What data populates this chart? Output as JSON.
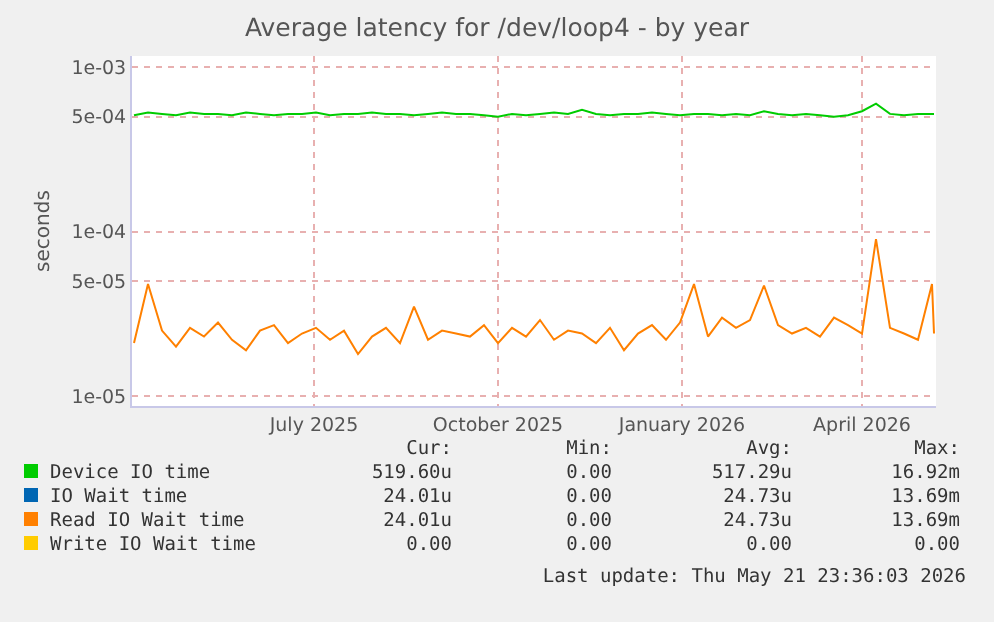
{
  "chart_data": {
    "type": "line",
    "title": "Average latency for /dev/loop4 - by year",
    "ylabel": "seconds",
    "log": "y",
    "grid": true,
    "legend": "bottom",
    "marker": "none",
    "line_style": "solid",
    "ylim": [
      8.7e-06,
      0.00117
    ],
    "yticks": [
      {
        "value": 1e-05,
        "label": "1e-05"
      },
      {
        "value": 5e-05,
        "label": "5e-05"
      },
      {
        "value": 0.0001,
        "label": "1e-04"
      },
      {
        "value": 0.0005,
        "label": "5e-04"
      },
      {
        "value": 0.001,
        "label": "1e-03"
      }
    ],
    "xlim": [
      "2025-04-15",
      "2026-05-22"
    ],
    "xticks": [
      {
        "value": "2025-07-15",
        "label": "July 2025"
      },
      {
        "value": "2025-10-15",
        "label": "October 2025"
      },
      {
        "value": "2026-01-15",
        "label": "January 2026"
      },
      {
        "value": "2026-04-15",
        "label": "April 2026"
      }
    ],
    "x": [
      "2025-04-16",
      "2025-04-23",
      "2025-04-30",
      "2025-05-07",
      "2025-05-14",
      "2025-05-21",
      "2025-05-28",
      "2025-06-04",
      "2025-06-11",
      "2025-06-18",
      "2025-06-25",
      "2025-07-02",
      "2025-07-09",
      "2025-07-16",
      "2025-07-23",
      "2025-07-30",
      "2025-08-06",
      "2025-08-13",
      "2025-08-20",
      "2025-08-27",
      "2025-09-03",
      "2025-09-10",
      "2025-09-17",
      "2025-09-24",
      "2025-10-01",
      "2025-10-08",
      "2025-10-15",
      "2025-10-22",
      "2025-10-29",
      "2025-11-05",
      "2025-11-12",
      "2025-11-19",
      "2025-11-26",
      "2025-12-03",
      "2025-12-10",
      "2025-12-17",
      "2025-12-24",
      "2025-12-31",
      "2026-01-07",
      "2026-01-14",
      "2026-01-21",
      "2026-01-28",
      "2026-02-04",
      "2026-02-11",
      "2026-02-18",
      "2026-02-25",
      "2026-03-04",
      "2026-03-11",
      "2026-03-18",
      "2026-03-25",
      "2026-04-01",
      "2026-04-08",
      "2026-04-15",
      "2026-04-22",
      "2026-04-29",
      "2026-05-06",
      "2026-05-13",
      "2026-05-20",
      "2026-05-21"
    ],
    "series": [
      {
        "name": "Device IO time",
        "color": "#00cc00",
        "values": [
          0.00051,
          0.00053,
          0.00052,
          0.00051,
          0.00053,
          0.00052,
          0.00052,
          0.00051,
          0.00053,
          0.00052,
          0.00051,
          0.00052,
          0.00052,
          0.00053,
          0.00051,
          0.00052,
          0.00052,
          0.00053,
          0.00052,
          0.00052,
          0.00051,
          0.00052,
          0.00053,
          0.00052,
          0.00052,
          0.00051,
          0.0005,
          0.00052,
          0.00051,
          0.00052,
          0.00053,
          0.00052,
          0.00055,
          0.00052,
          0.00051,
          0.00052,
          0.00052,
          0.00053,
          0.00052,
          0.00051,
          0.00052,
          0.00052,
          0.00051,
          0.00052,
          0.00051,
          0.00054,
          0.00052,
          0.00051,
          0.00052,
          0.00051,
          0.0005,
          0.00051,
          0.00054,
          0.0006,
          0.00052,
          0.00051,
          0.00052,
          0.00052,
          0.00052
        ]
      },
      {
        "name": "IO Wait time",
        "color": "#0066b3",
        "values": [
          null,
          null,
          null,
          null,
          null,
          null,
          null,
          null,
          null,
          null,
          null,
          null,
          null,
          null,
          null,
          null,
          null,
          null,
          null,
          null,
          null,
          null,
          null,
          null,
          null,
          null,
          null,
          null,
          null,
          null,
          null,
          null,
          null,
          null,
          null,
          null,
          null,
          null,
          null,
          null,
          null,
          null,
          null,
          null,
          null,
          null,
          null,
          null,
          null,
          null,
          null,
          null,
          null,
          null,
          null,
          null,
          null,
          null,
          null
        ]
      },
      {
        "name": "Read IO Wait time",
        "color": "#ff8000",
        "values": [
          2.1e-05,
          4.8e-05,
          2.5e-05,
          2e-05,
          2.6e-05,
          2.3e-05,
          2.8e-05,
          2.2e-05,
          1.9e-05,
          2.5e-05,
          2.7e-05,
          2.1e-05,
          2.4e-05,
          2.6e-05,
          2.2e-05,
          2.5e-05,
          1.8e-05,
          2.3e-05,
          2.6e-05,
          2.1e-05,
          3.5e-05,
          2.2e-05,
          2.5e-05,
          2.4e-05,
          2.3e-05,
          2.7e-05,
          2.1e-05,
          2.6e-05,
          2.3e-05,
          2.9e-05,
          2.2e-05,
          2.5e-05,
          2.4e-05,
          2.1e-05,
          2.6e-05,
          1.9e-05,
          2.4e-05,
          2.7e-05,
          2.2e-05,
          2.8e-05,
          4.8e-05,
          2.3e-05,
          3e-05,
          2.6e-05,
          2.9e-05,
          4.7e-05,
          2.7e-05,
          2.4e-05,
          2.6e-05,
          2.3e-05,
          3e-05,
          2.7e-05,
          2.4e-05,
          9e-05,
          2.6e-05,
          2.4e-05,
          2.2e-05,
          4.8e-05,
          2.4e-05
        ]
      },
      {
        "name": "Write IO Wait time",
        "color": "#ffcc00",
        "values": [
          null,
          null,
          null,
          null,
          null,
          null,
          null,
          null,
          null,
          null,
          null,
          null,
          null,
          null,
          null,
          null,
          null,
          null,
          null,
          null,
          null,
          null,
          null,
          null,
          null,
          null,
          null,
          null,
          null,
          null,
          null,
          null,
          null,
          null,
          null,
          null,
          null,
          null,
          null,
          null,
          null,
          null,
          null,
          null,
          null,
          null,
          null,
          null,
          null,
          null,
          null,
          null,
          null,
          null,
          null,
          null,
          null,
          null,
          null
        ]
      }
    ],
    "annotations": [
      "Cur:",
      "Min:",
      "Avg:",
      "Max:",
      "519.60u",
      "0.00",
      "517.29u",
      "16.92m",
      "24.01u",
      "0.00",
      "24.73u",
      "13.69m",
      "24.01u",
      "0.00",
      "24.73u",
      "13.69m",
      "0.00",
      "0.00",
      "0.00",
      "0.00",
      "Last update: Thu May 21 23:36:03 2026"
    ]
  }
}
